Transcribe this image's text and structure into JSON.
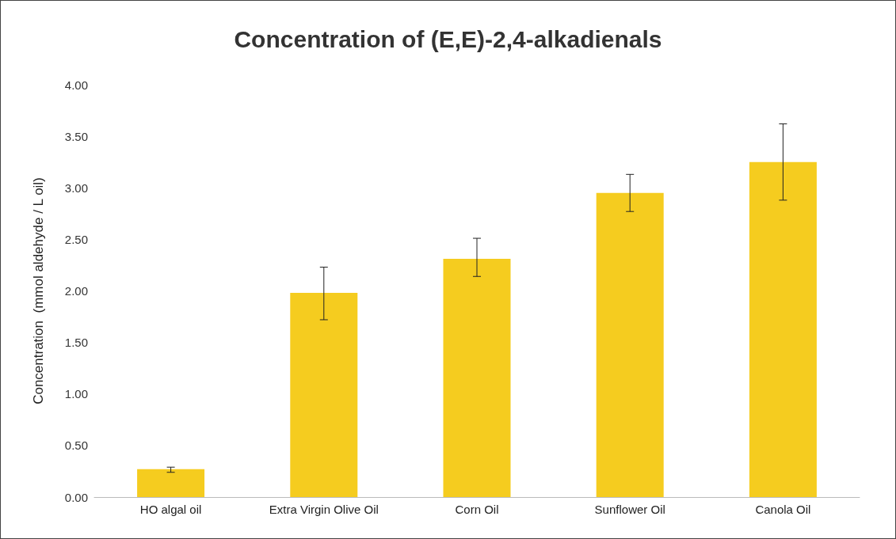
{
  "chart_data": {
    "type": "bar",
    "title": "Concentration of (E,E)-2,4-alkadienals",
    "ylabel": "Concentration  (mmol aldehyde / L oil)",
    "categories": [
      "HO algal oil",
      "Extra Virgin Olive Oil",
      "Corn Oil",
      "Sunflower Oil",
      "Canola Oil"
    ],
    "values": [
      0.27,
      1.98,
      2.31,
      2.95,
      3.25
    ],
    "errors": [
      [
        0.24,
        0.29
      ],
      [
        1.72,
        2.23
      ],
      [
        2.14,
        2.51
      ],
      [
        2.77,
        3.13
      ],
      [
        2.88,
        3.62
      ]
    ],
    "color": "#f5cc1f",
    "ylim": [
      0,
      4
    ],
    "yticks": [
      {
        "value": 0,
        "label": "0.00"
      },
      {
        "value": 0.5,
        "label": "0.50"
      },
      {
        "value": 1,
        "label": "1.00"
      },
      {
        "value": 1.5,
        "label": "1.50"
      },
      {
        "value": 2,
        "label": "2.00"
      },
      {
        "value": 2.5,
        "label": "2.50"
      },
      {
        "value": 3,
        "label": "3.00"
      },
      {
        "value": 3.5,
        "label": "3.50"
      },
      {
        "value": 4,
        "label": "4.00"
      }
    ],
    "grid": false
  }
}
